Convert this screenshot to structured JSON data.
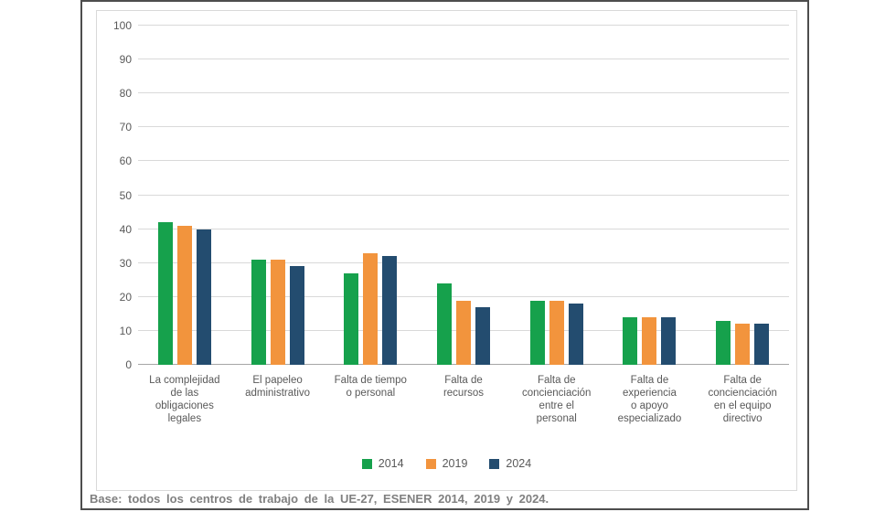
{
  "colors": {
    "series_2014": "#16A14C",
    "series_2019": "#F2943D",
    "series_2024": "#234C6F",
    "gridline": "#d9d9d9",
    "baseline": "#a6a6a6",
    "axis_text": "#595959",
    "note_text": "#808080",
    "frame_border": "#4d4d4d",
    "panel_border": "#d9d9d9"
  },
  "chart_data": {
    "type": "bar",
    "title": "",
    "xlabel": "",
    "ylabel": "",
    "ylim": [
      0,
      100
    ],
    "ytick_step": 10,
    "yticks": [
      0,
      10,
      20,
      30,
      40,
      50,
      60,
      70,
      80,
      90,
      100
    ],
    "grid": true,
    "legend_position": "bottom",
    "categories": [
      "La complejidad\nde las\nobligaciones\nlegales",
      "El papeleo\nadministrativo",
      "Falta de tiempo\no personal",
      "Falta de\nrecursos",
      "Falta de\nconcienciación\nentre el\npersonal",
      "Falta de\nexperiencia\no apoyo\nespecializado",
      "Falta de\nconcienciación\nen el equipo\ndirectivo"
    ],
    "series": [
      {
        "name": "2014",
        "color": "#16A14C",
        "values": [
          42,
          31,
          27,
          24,
          19,
          14,
          13
        ]
      },
      {
        "name": "2019",
        "color": "#F2943D",
        "values": [
          41,
          31,
          33,
          19,
          19,
          14,
          12
        ]
      },
      {
        "name": "2024",
        "color": "#234C6F",
        "values": [
          40,
          29,
          32,
          17,
          18,
          14,
          12
        ]
      }
    ]
  },
  "frame": {
    "base_note": "Base: todos los centros de trabajo de la UE-27, ESENER 2014, 2019 y 2024."
  }
}
